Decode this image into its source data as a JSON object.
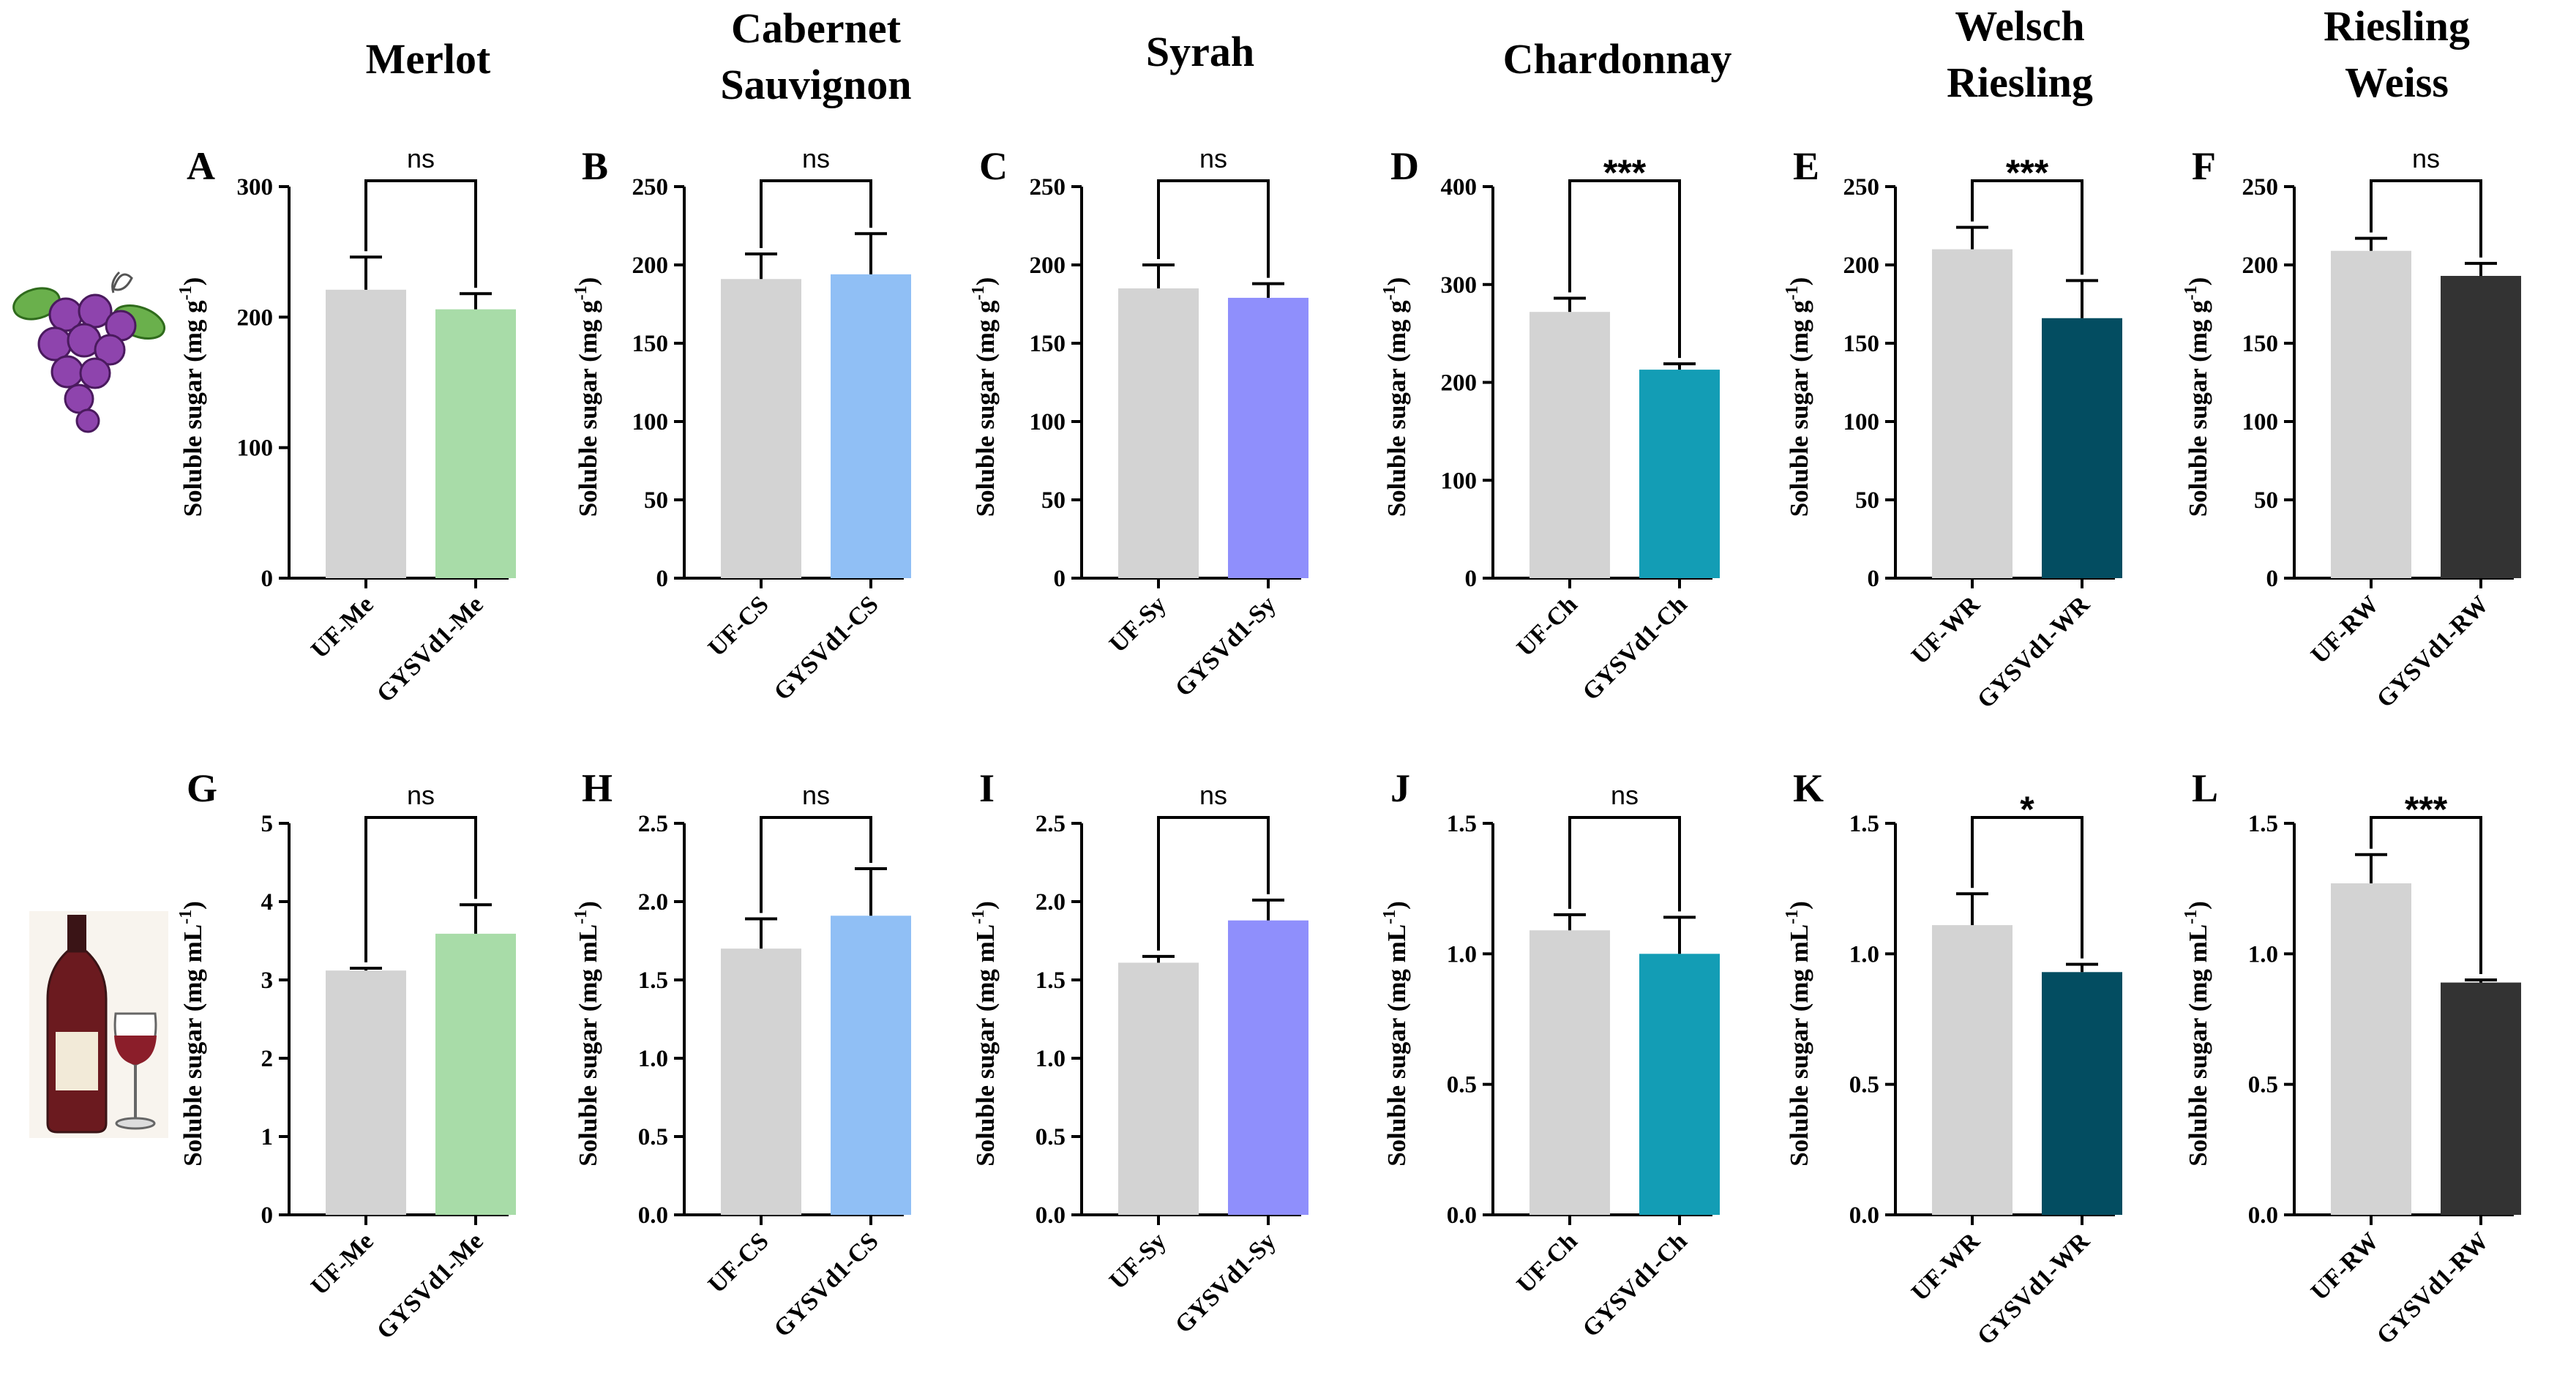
{
  "columns": [
    "Merlot",
    "Cabernet Sauvignon",
    "Syrah",
    "Chardonnay",
    "Welsch Riesling",
    "Riesling Weiss"
  ],
  "colors": {
    "control": "#d3d3d3",
    "Merlot": "#a8dca8",
    "Cabernet Sauvignon": "#90bff5",
    "Syrah": "#8f8ffc",
    "Chardonnay": "#139db5",
    "Welsch Riesling": "#034d61",
    "Riesling Weiss": "#333333"
  },
  "icons": {
    "row1": "grape-cluster-icon",
    "row2": "wine-bottle-glass-icon"
  },
  "ylabel_rows": [
    {
      "main": "Soluble sugar (mg g",
      "sup": "-1",
      "end": ")"
    },
    {
      "main": "Soluble sugar (mg mL",
      "sup": "-1",
      "end": ")"
    }
  ],
  "chart_data": [
    {
      "panel": "A",
      "type": "bar",
      "title": "Merlot",
      "ylabel": "Soluble sugar (mg g-1)",
      "categories": [
        "UF-Me",
        "GYSVd1-Me"
      ],
      "values": [
        221,
        206
      ],
      "errors": [
        25,
        12
      ],
      "ylim": [
        0,
        300
      ],
      "yticks": [
        "0",
        "100",
        "200",
        "300"
      ],
      "significance": "ns"
    },
    {
      "panel": "B",
      "type": "bar",
      "title": "Cabernet Sauvignon",
      "ylabel": "Soluble sugar (mg g-1)",
      "categories": [
        "UF-CS",
        "GYSVd1-CS"
      ],
      "values": [
        191,
        194
      ],
      "errors": [
        16,
        26
      ],
      "ylim": [
        0,
        250
      ],
      "yticks": [
        "0",
        "50",
        "100",
        "150",
        "200",
        "250"
      ],
      "significance": "ns"
    },
    {
      "panel": "C",
      "type": "bar",
      "title": "Syrah",
      "ylabel": "Soluble sugar (mg g-1)",
      "categories": [
        "UF-Sy",
        "GYSVd1-Sy"
      ],
      "values": [
        185,
        179
      ],
      "errors": [
        15,
        9
      ],
      "ylim": [
        0,
        250
      ],
      "yticks": [
        "0",
        "50",
        "100",
        "150",
        "200",
        "250"
      ],
      "significance": "ns"
    },
    {
      "panel": "D",
      "type": "bar",
      "title": "Chardonnay",
      "ylabel": "Soluble sugar (mg g-1)",
      "categories": [
        "UF-Ch",
        "GYSVd1-Ch"
      ],
      "values": [
        272,
        213
      ],
      "errors": [
        14,
        6
      ],
      "ylim": [
        0,
        400
      ],
      "yticks": [
        "0",
        "100",
        "200",
        "300",
        "400"
      ],
      "significance": "***"
    },
    {
      "panel": "E",
      "type": "bar",
      "title": "Welsch Riesling",
      "ylabel": "Soluble sugar (mg g-1)",
      "categories": [
        "UF-WR",
        "GYSVd1-WR"
      ],
      "values": [
        210,
        166
      ],
      "errors": [
        14,
        24
      ],
      "ylim": [
        0,
        250
      ],
      "yticks": [
        "0",
        "50",
        "100",
        "150",
        "200",
        "250"
      ],
      "significance": "***"
    },
    {
      "panel": "F",
      "type": "bar",
      "title": "Riesling Weiss",
      "ylabel": "Soluble sugar (mg g-1)",
      "categories": [
        "UF-RW",
        "GYSVd1-RW"
      ],
      "values": [
        209,
        193
      ],
      "errors": [
        8,
        8
      ],
      "ylim": [
        0,
        250
      ],
      "yticks": [
        "0",
        "50",
        "100",
        "150",
        "200",
        "250"
      ],
      "significance": "ns"
    },
    {
      "panel": "G",
      "type": "bar",
      "title": "Merlot",
      "ylabel": "Soluble sugar (mg mL-1)",
      "categories": [
        "UF-Me",
        "GYSVd1-Me"
      ],
      "values": [
        3.12,
        3.59
      ],
      "errors": [
        0.03,
        0.37
      ],
      "ylim": [
        0,
        5
      ],
      "yticks": [
        "0",
        "1",
        "2",
        "3",
        "4",
        "5"
      ],
      "significance": "ns"
    },
    {
      "panel": "H",
      "type": "bar",
      "title": "Cabernet Sauvignon",
      "ylabel": "Soluble sugar (mg mL-1)",
      "categories": [
        "UF-CS",
        "GYSVd1-CS"
      ],
      "values": [
        1.7,
        1.91
      ],
      "errors": [
        0.19,
        0.3
      ],
      "ylim": [
        0,
        2.5
      ],
      "yticks": [
        "0.0",
        "0.5",
        "1.0",
        "1.5",
        "2.0",
        "2.5"
      ],
      "significance": "ns"
    },
    {
      "panel": "I",
      "type": "bar",
      "title": "Syrah",
      "ylabel": "Soluble sugar (mg mL-1)",
      "categories": [
        "UF-Sy",
        "GYSVd1-Sy"
      ],
      "values": [
        1.61,
        1.88
      ],
      "errors": [
        0.04,
        0.13
      ],
      "ylim": [
        0,
        2.5
      ],
      "yticks": [
        "0.0",
        "0.5",
        "1.0",
        "1.5",
        "2.0",
        "2.5"
      ],
      "significance": "ns"
    },
    {
      "panel": "J",
      "type": "bar",
      "title": "Chardonnay",
      "ylabel": "Soluble sugar (mg mL-1)",
      "categories": [
        "UF-Ch",
        "GYSVd1-Ch"
      ],
      "values": [
        1.09,
        1.0
      ],
      "errors": [
        0.06,
        0.14
      ],
      "ylim": [
        0,
        1.5
      ],
      "yticks": [
        "0.0",
        "0.5",
        "1.0",
        "1.5"
      ],
      "significance": "ns"
    },
    {
      "panel": "K",
      "type": "bar",
      "title": "Welsch Riesling",
      "ylabel": "Soluble sugar (mg mL-1)",
      "categories": [
        "UF-WR",
        "GYSVd1-WR"
      ],
      "values": [
        1.11,
        0.93
      ],
      "errors": [
        0.12,
        0.03
      ],
      "ylim": [
        0,
        1.5
      ],
      "yticks": [
        "0.0",
        "0.5",
        "1.0",
        "1.5"
      ],
      "significance": "*"
    },
    {
      "panel": "L",
      "type": "bar",
      "title": "Riesling Weiss",
      "ylabel": "Soluble sugar (mg mL-1)",
      "categories": [
        "UF-RW",
        "GYSVd1-RW"
      ],
      "values": [
        1.27,
        0.89
      ],
      "errors": [
        0.11,
        0.01
      ],
      "ylim": [
        0,
        1.5
      ],
      "yticks": [
        "0.0",
        "0.5",
        "1.0",
        "1.5"
      ],
      "significance": "***"
    }
  ]
}
